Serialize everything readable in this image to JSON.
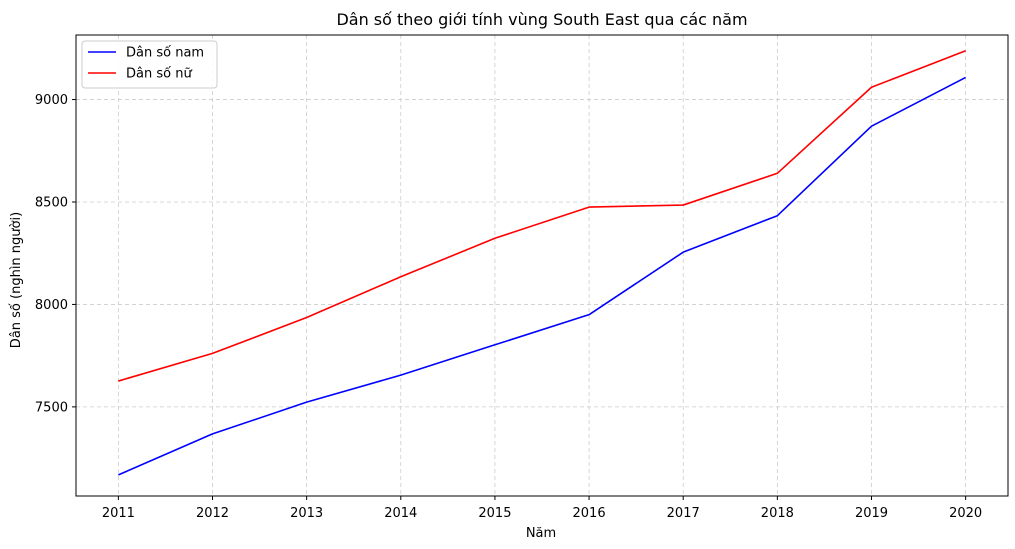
{
  "chart_data": {
    "type": "line",
    "title": "Dân số theo giới tính vùng South East qua các năm",
    "xlabel": "Năm",
    "ylabel": "Dân số (nghìn người)",
    "x": [
      2011,
      2012,
      2013,
      2014,
      2015,
      2016,
      2017,
      2018,
      2019,
      2020
    ],
    "x_tick_labels": [
      "2011",
      "2012",
      "2013",
      "2014",
      "2015",
      "2016",
      "2017",
      "2018",
      "2019",
      "2020"
    ],
    "y_ticks": [
      7500,
      8000,
      8500,
      9000
    ],
    "y_tick_labels": [
      "7500",
      "8000",
      "8500",
      "9000"
    ],
    "xlim": [
      2010.55,
      2020.45
    ],
    "ylim": [
      7065,
      9315
    ],
    "grid": true,
    "legend_position": "top-left",
    "series": [
      {
        "name": "Dân số nam",
        "color": "#0000ff",
        "values": [
          7168,
          7368,
          7523,
          7655,
          7803,
          7950,
          8255,
          8433,
          8870,
          9108
        ]
      },
      {
        "name": "Dân số nữ",
        "color": "#ff0000",
        "values": [
          7626,
          7761,
          7936,
          8135,
          8323,
          8475,
          8485,
          8640,
          9060,
          9238
        ]
      }
    ]
  }
}
